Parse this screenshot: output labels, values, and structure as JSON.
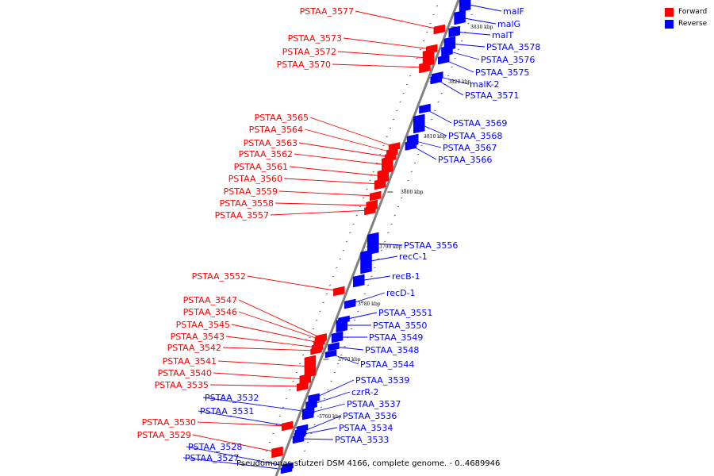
{
  "legend": [
    {
      "label": "Forward",
      "color": "#ff0000"
    },
    {
      "label": "Reverse",
      "color": "#0000ff"
    }
  ],
  "caption": "Pseudomonas stutzeri DSM 4166, complete genome. - 0..4689946",
  "colors": {
    "forward": "#ff0000",
    "reverse": "#0000ff",
    "backbone": "#808080"
  },
  "ticks": [
    "3830 kbp",
    "3820 kbp",
    "3810 kbp",
    "3800 kbp",
    "3790 kbp",
    "3780 kbp",
    "3770 kbp",
    "3760 kbp"
  ],
  "genes": [
    {
      "name": "PSTAA_3577",
      "strand": "forward"
    },
    {
      "name": "malF",
      "strand": "reverse"
    },
    {
      "name": "malG",
      "strand": "reverse"
    },
    {
      "name": "malT",
      "strand": "reverse"
    },
    {
      "name": "PSTAA_3573",
      "strand": "forward"
    },
    {
      "name": "PSTAA_3578",
      "strand": "reverse"
    },
    {
      "name": "PSTAA_3572",
      "strand": "forward"
    },
    {
      "name": "PSTAA_3576",
      "strand": "reverse"
    },
    {
      "name": "PSTAA_3570",
      "strand": "forward"
    },
    {
      "name": "PSTAA_3575",
      "strand": "reverse"
    },
    {
      "name": "malK-2",
      "strand": "reverse"
    },
    {
      "name": "PSTAA_3571",
      "strand": "reverse"
    },
    {
      "name": "PSTAA_3565",
      "strand": "forward"
    },
    {
      "name": "PSTAA_3569",
      "strand": "reverse"
    },
    {
      "name": "PSTAA_3564",
      "strand": "forward"
    },
    {
      "name": "PSTAA_3568",
      "strand": "reverse"
    },
    {
      "name": "PSTAA_3563",
      "strand": "forward"
    },
    {
      "name": "PSTAA_3567",
      "strand": "reverse"
    },
    {
      "name": "PSTAA_3562",
      "strand": "forward"
    },
    {
      "name": "PSTAA_3566",
      "strand": "reverse"
    },
    {
      "name": "PSTAA_3561",
      "strand": "forward"
    },
    {
      "name": "PSTAA_3560",
      "strand": "forward"
    },
    {
      "name": "PSTAA_3559",
      "strand": "forward"
    },
    {
      "name": "PSTAA_3558",
      "strand": "forward"
    },
    {
      "name": "PSTAA_3557",
      "strand": "forward"
    },
    {
      "name": "PSTAA_3556",
      "strand": "reverse"
    },
    {
      "name": "recC-1",
      "strand": "reverse"
    },
    {
      "name": "recB-1",
      "strand": "reverse"
    },
    {
      "name": "PSTAA_3552",
      "strand": "forward"
    },
    {
      "name": "recD-1",
      "strand": "reverse"
    },
    {
      "name": "PSTAA_3547",
      "strand": "forward"
    },
    {
      "name": "PSTAA_3551",
      "strand": "reverse"
    },
    {
      "name": "PSTAA_3546",
      "strand": "forward"
    },
    {
      "name": "PSTAA_3545",
      "strand": "forward"
    },
    {
      "name": "PSTAA_3550",
      "strand": "reverse"
    },
    {
      "name": "PSTAA_3543",
      "strand": "forward"
    },
    {
      "name": "PSTAA_3549",
      "strand": "reverse"
    },
    {
      "name": "PSTAA_3542",
      "strand": "forward"
    },
    {
      "name": "PSTAA_3548",
      "strand": "reverse"
    },
    {
      "name": "PSTAA_3541",
      "strand": "forward"
    },
    {
      "name": "PSTAA_3544",
      "strand": "reverse"
    },
    {
      "name": "PSTAA_3540",
      "strand": "forward"
    },
    {
      "name": "PSTAA_3539",
      "strand": "reverse"
    },
    {
      "name": "PSTAA_3535",
      "strand": "forward"
    },
    {
      "name": "czrR-2",
      "strand": "reverse"
    },
    {
      "name": "PSTAA_3532",
      "strand": "reverse"
    },
    {
      "name": "PSTAA_3537",
      "strand": "reverse"
    },
    {
      "name": "PSTAA_3531",
      "strand": "reverse"
    },
    {
      "name": "PSTAA_3536",
      "strand": "reverse"
    },
    {
      "name": "PSTAA_3530",
      "strand": "forward"
    },
    {
      "name": "PSTAA_3534",
      "strand": "reverse"
    },
    {
      "name": "PSTAA_3529",
      "strand": "forward"
    },
    {
      "name": "PSTAA_3533",
      "strand": "reverse"
    },
    {
      "name": "PSTAA_3528",
      "strand": "reverse"
    },
    {
      "name": "PSTAA_3527",
      "strand": "reverse"
    }
  ]
}
